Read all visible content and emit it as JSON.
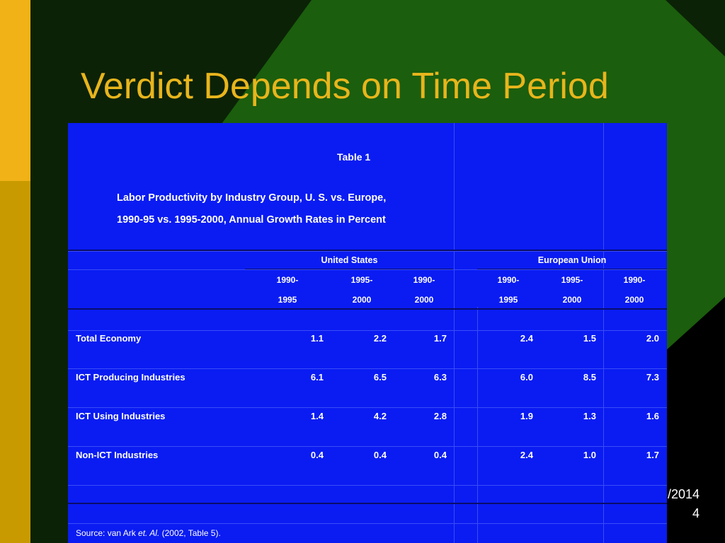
{
  "slide": {
    "title": "Verdict Depends on Time Period",
    "date_fragment": "/2014",
    "slide_number": "4",
    "colors": {
      "title": "#e8b51c",
      "table_bg": "#0a1cf2",
      "green": "#1b5e0d",
      "gold": "#f0b216"
    }
  },
  "table": {
    "caption": "Table 1",
    "subtitle_line1": "Labor Productivity by Industry Group, U. S. vs. Europe,",
    "subtitle_line2": "1990-95 vs. 1995-2000, Annual Growth Rates in Percent",
    "group_us": "United States",
    "group_eu": "European Union",
    "period_tops": [
      "1990-",
      "1995-",
      "1990-",
      "1990-",
      "1995-",
      "1990-"
    ],
    "period_bottoms": [
      "1995",
      "2000",
      "2000",
      "1995",
      "2000",
      "2000"
    ],
    "rows": [
      {
        "label": "Total Economy",
        "values": [
          "1.1",
          "2.2",
          "1.7",
          "2.4",
          "1.5",
          "2.0"
        ]
      },
      {
        "label": "ICT Producing Industries",
        "values": [
          "6.1",
          "6.5",
          "6.3",
          "6.0",
          "8.5",
          "7.3"
        ]
      },
      {
        "label": "ICT Using Industries",
        "values": [
          "1.4",
          "4.2",
          "2.8",
          "1.9",
          "1.3",
          "1.6"
        ]
      },
      {
        "label": "Non-ICT Industries",
        "values": [
          "0.4",
          "0.4",
          "0.4",
          "2.4",
          "1.0",
          "1.7"
        ]
      }
    ],
    "source_prefix": "Source:  van Ark ",
    "source_italic": "et. Al.",
    "source_suffix": " (2002, Table 5)."
  }
}
